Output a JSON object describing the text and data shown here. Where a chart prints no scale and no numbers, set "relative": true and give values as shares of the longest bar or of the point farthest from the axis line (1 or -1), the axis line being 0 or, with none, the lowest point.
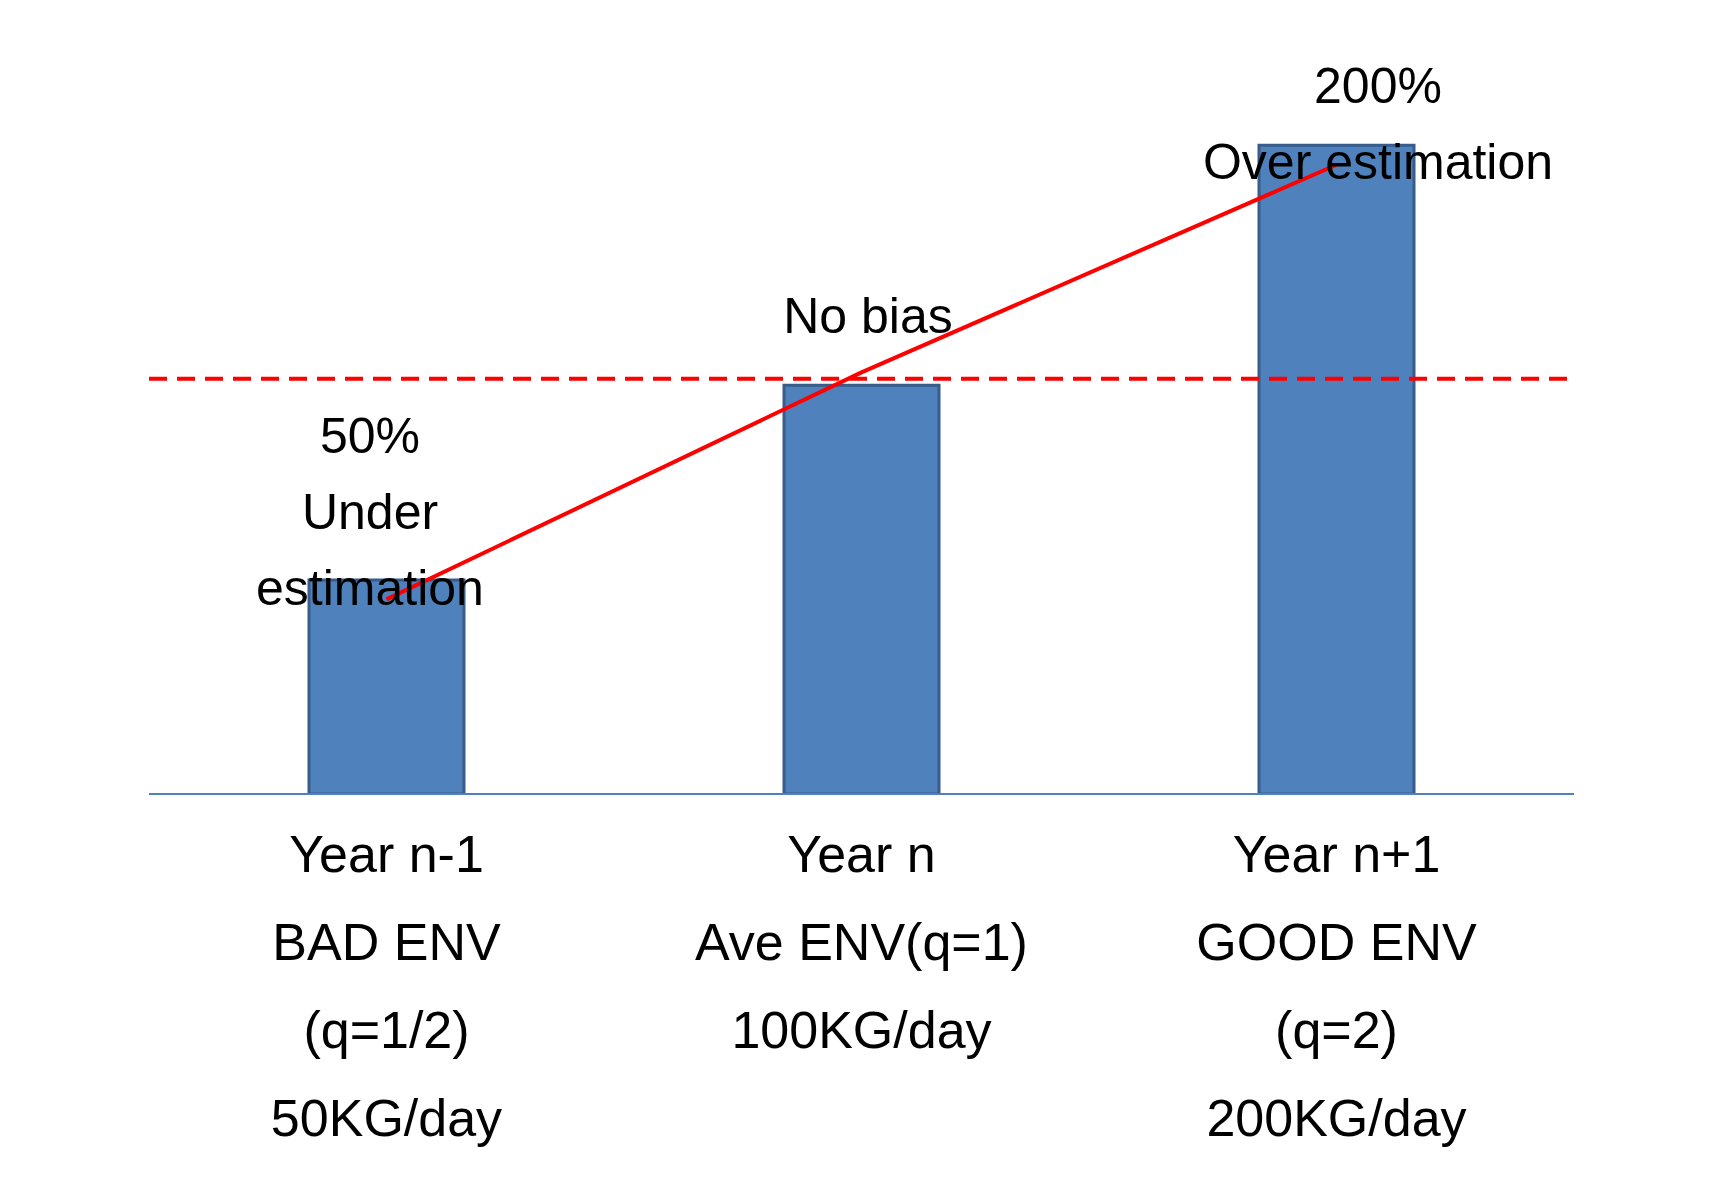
{
  "chart_data": {
    "type": "bar",
    "relative": true,
    "categories": [
      "Year n-1\nBAD ENV\n(q=1/2)\n50KG/day",
      "Year n\nAve ENV(q=1)\n100KG/day",
      "Year n+1\nGOOD ENV\n(q=2)\n200KG/day"
    ],
    "series": [
      {
        "color": "#4f81bd",
        "values": [
          0.33,
          0.63,
          1
        ]
      },
      {
        "type": "line",
        "color": "#ff0000",
        "line_style": "solid",
        "values": [
          0.3,
          0.65,
          0.97
        ]
      }
    ],
    "ref_lines": [
      {
        "axis": "y",
        "value": 0.64,
        "color": "#ff0000",
        "line_style": "dashed"
      }
    ],
    "annotations": [
      "50%\nUnder\nestimation",
      "No bias",
      "200%\nOver estimation"
    ],
    "marker": "none",
    "legend": false,
    "grid": false
  }
}
